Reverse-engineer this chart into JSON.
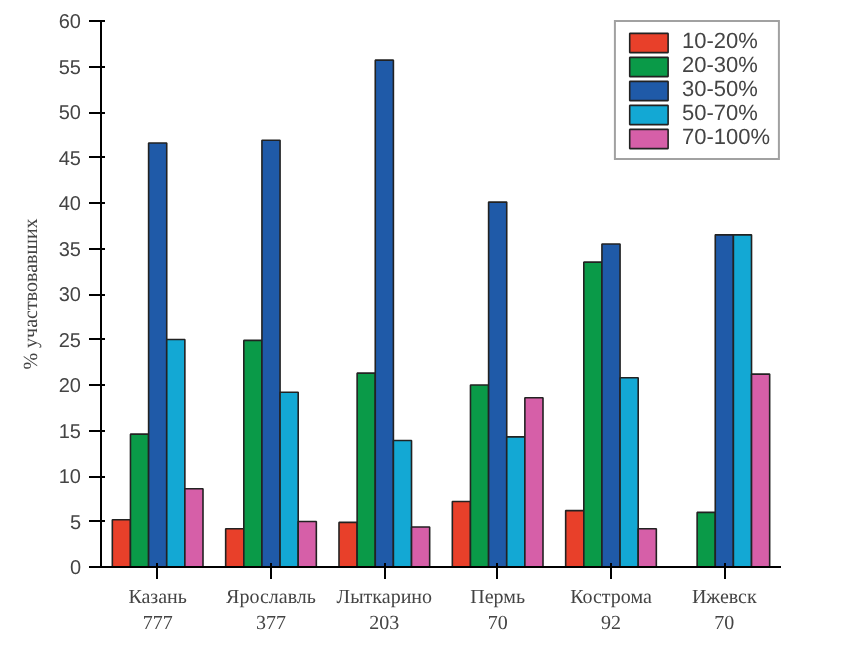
{
  "chart_data": {
    "type": "bar",
    "ylabel": "% участвовавших",
    "categories": [
      "Казань\n777",
      "Ярославль\n377",
      "Лыткарино\n203",
      "Пермь\n70",
      "Кострома\n92",
      "Ижевск\n70"
    ],
    "series": [
      {
        "name": "10-20%",
        "color": "#e8402a",
        "values": [
          5.2,
          4.2,
          4.9,
          7.2,
          6.2,
          null
        ]
      },
      {
        "name": "20-30%",
        "color": "#0a9a48",
        "values": [
          14.6,
          24.9,
          21.3,
          20.0,
          33.5,
          6.0
        ]
      },
      {
        "name": "30-50%",
        "color": "#1f5aa8",
        "values": [
          46.6,
          46.9,
          55.7,
          40.1,
          35.5,
          36.5
        ]
      },
      {
        "name": "50-70%",
        "color": "#13a8d4",
        "values": [
          25.0,
          19.2,
          13.9,
          14.3,
          20.8,
          36.5
        ]
      },
      {
        "name": "70-100%",
        "color": "#d65fa8",
        "values": [
          8.6,
          5.0,
          4.4,
          18.6,
          4.2,
          21.2
        ]
      }
    ],
    "ylim": [
      0,
      60
    ],
    "yticks": [
      0,
      5,
      10,
      15,
      20,
      25,
      30,
      35,
      40,
      45,
      50,
      55,
      60
    ],
    "grid": false,
    "legend": "top right"
  }
}
